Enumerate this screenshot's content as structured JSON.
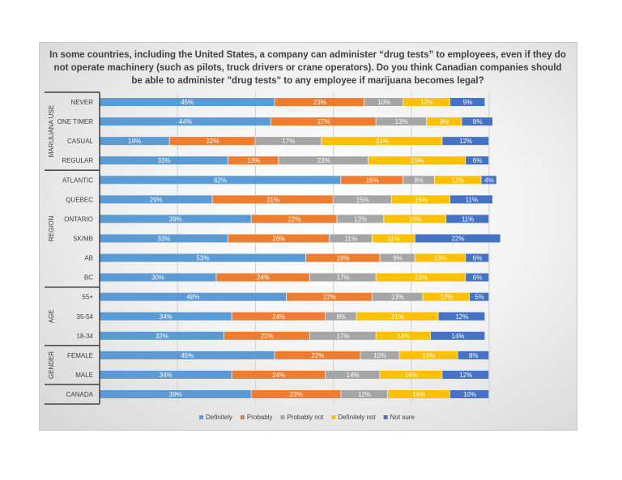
{
  "chart_data": {
    "type": "bar",
    "orientation": "horizontal",
    "stacked": true,
    "title": "In some countries, including the United States, a company can administer “drug tests” to employees, even if they do not operate machinery (such as pilots, truck drivers or crane operators). Do you think Canadian companies should be able to administer \"drug tests\" to any employee if marijuana becomes legal?",
    "xlim": [
      0,
      100
    ],
    "grid": true,
    "legend": "bottom",
    "groups": [
      {
        "name": "MARIJUANA USE",
        "categories": [
          "NEVER",
          "ONE TIMER",
          "CASUAL",
          "REGULAR"
        ]
      },
      {
        "name": "REGION",
        "categories": [
          "ATLANTIC",
          "QUEBEC",
          "ONTARIO",
          "SK/MB",
          "AB",
          "BC"
        ]
      },
      {
        "name": "AGE",
        "categories": [
          "55+",
          "35-54",
          "18-34"
        ]
      },
      {
        "name": "GENDER",
        "categories": [
          "FEMALE",
          "MALE"
        ]
      },
      {
        "name": "",
        "categories": [
          "CANADA"
        ]
      }
    ],
    "categories": [
      "NEVER",
      "ONE TIMER",
      "CASUAL",
      "REGULAR",
      "ATLANTIC",
      "QUEBEC",
      "ONTARIO",
      "SK/MB",
      "AB",
      "BC",
      "55+",
      "35-54",
      "18-34",
      "FEMALE",
      "MALE",
      "CANADA"
    ],
    "series": [
      {
        "name": "Definitely",
        "color": "#5b9bd5",
        "values": [
          45,
          44,
          18,
          33,
          62,
          29,
          39,
          33,
          53,
          30,
          48,
          34,
          32,
          45,
          34,
          39
        ]
      },
      {
        "name": "Probably",
        "color": "#ed7d31",
        "values": [
          23,
          27,
          22,
          13,
          16,
          31,
          22,
          26,
          19,
          24,
          22,
          24,
          22,
          22,
          24,
          23
        ]
      },
      {
        "name": "Probably not",
        "color": "#a5a5a5",
        "values": [
          10,
          13,
          17,
          23,
          8,
          15,
          12,
          11,
          9,
          17,
          13,
          8,
          17,
          10,
          14,
          12
        ]
      },
      {
        "name": "Definitely not",
        "color": "#ffc000",
        "values": [
          12,
          9,
          31,
          25,
          12,
          15,
          16,
          11,
          13,
          23,
          12,
          21,
          14,
          15,
          16,
          16
        ]
      },
      {
        "name": "Not sure",
        "color": "#4472c4",
        "values": [
          9,
          8,
          12,
          6,
          4,
          11,
          11,
          22,
          6,
          6,
          5,
          12,
          14,
          8,
          12,
          10
        ]
      }
    ]
  }
}
